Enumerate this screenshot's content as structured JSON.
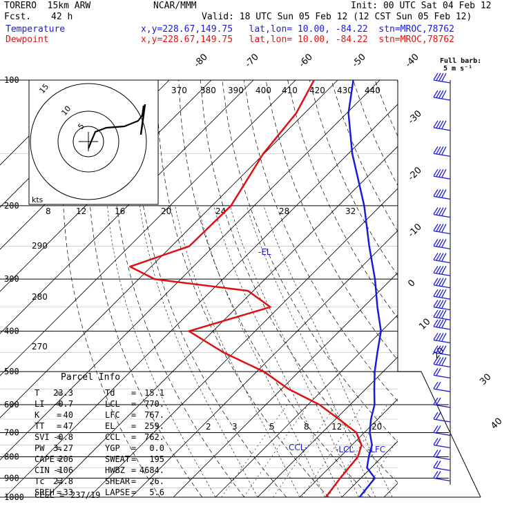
{
  "header": {
    "model": "TORERO  15km ARW",
    "org": "NCAR/MMM",
    "init": "Init: 00 UTC Sat 04 Feb 12",
    "fcst_label": "Fcst.",
    "fcst_value": "42 h",
    "valid": "Valid: 18 UTC Sun 05 Feb 12 (12 CST Sun 05 Feb 12)",
    "temp_label": "Temperature",
    "dew_label": "Dewpoint",
    "location_line": "x,y=228.67,149.75   lat,lon= 10.00, -84.22  stn=MROC,78762",
    "barb_label_1": "Full barb:",
    "barb_label_2": "5 m s⁻¹"
  },
  "parcel_info": {
    "title": "Parcel Info",
    "rows": [
      {
        "l1": "T",
        "v1": "23.3",
        "l2": "Td",
        "v2": "15.1"
      },
      {
        "l1": "LI",
        "v1": "-0.7",
        "l2": "LCL",
        "v2": "770."
      },
      {
        "l1": "K",
        "v1": "40",
        "l2": "LFC",
        "v2": "767."
      },
      {
        "l1": "TT",
        "v1": "47",
        "l2": "EL",
        "v2": "259."
      },
      {
        "l1": "SVI",
        "v1": "-0.8",
        "l2": "CCL",
        "v2": "762."
      },
      {
        "l1": "PW",
        "v1": "3.27",
        "l2": "YGP",
        "v2": "0.0"
      },
      {
        "l1": "CAPE",
        "v1": "206",
        "l2": "SWEAT",
        "v2": "195"
      },
      {
        "l1": "CIN",
        "v1": "-106",
        "l2": "HWBZ",
        "v2": "4684."
      },
      {
        "l1": "Tc",
        "v1": "23.8",
        "l2": "SHEAR",
        "v2": "26."
      },
      {
        "l1": "SREH",
        "v1": "33",
        "l2": "LAPSE",
        "v2": "5.6"
      }
    ],
    "cell_label": "CELL =",
    "cell_value": "237/19"
  },
  "chart_data": {
    "type": "line",
    "title": "",
    "pressure_levels": [
      100,
      200,
      300,
      400,
      500,
      600,
      700,
      800,
      900,
      1000
    ],
    "ylim": [
      1000,
      100
    ],
    "isotherm_labels_top": [
      "-80",
      "-70",
      "-60",
      "-50",
      "-40"
    ],
    "isotherm_labels_right": [
      "-30",
      "-20",
      "-10",
      "0",
      "10",
      "20",
      "30",
      "40"
    ],
    "theta_e_labels": [
      "370",
      "380",
      "390",
      "400",
      "410",
      "420",
      "430",
      "440"
    ],
    "theta_labels_left": [
      "290",
      "280",
      "270"
    ],
    "mixing_ratio_labels": [
      "2",
      "3",
      "5",
      "8",
      "12",
      "20"
    ],
    "hodograph": {
      "unit_label": "kts",
      "ring_labels": [
        "5",
        "10",
        "15"
      ],
      "speed_labels": [
        "8",
        "12",
        "16",
        "20",
        "24",
        "28",
        "32"
      ]
    },
    "markers": {
      "el": "-EL",
      "ccl": "CCL-",
      "lcl": "-LCL",
      "lfc": "-LFC"
    },
    "series": [
      {
        "name": "Temperature",
        "color": "#1a1adc",
        "points": [
          {
            "p": 1000,
            "t": 24.2
          },
          {
            "p": 900,
            "t": 23.3
          },
          {
            "p": 850,
            "t": 19.0
          },
          {
            "p": 800,
            "t": 16.8
          },
          {
            "p": 750,
            "t": 14.8
          },
          {
            "p": 700,
            "t": 11.3
          },
          {
            "p": 650,
            "t": 8.4
          },
          {
            "p": 600,
            "t": 5.8
          },
          {
            "p": 550,
            "t": 2.0
          },
          {
            "p": 500,
            "t": -2.0
          },
          {
            "p": 450,
            "t": -5.9
          },
          {
            "p": 400,
            "t": -10.1
          },
          {
            "p": 350,
            "t": -16.7
          },
          {
            "p": 300,
            "t": -23.9
          },
          {
            "p": 250,
            "t": -33.1
          },
          {
            "p": 200,
            "t": -43.9
          },
          {
            "p": 150,
            "t": -59.1
          },
          {
            "p": 120,
            "t": -69.6
          },
          {
            "p": 100,
            "t": -76.3
          }
        ]
      },
      {
        "name": "Dewpoint",
        "color": "#e01010",
        "points": [
          {
            "p": 1000,
            "t": 16.2
          },
          {
            "p": 900,
            "t": 15.1
          },
          {
            "p": 800,
            "t": 14.2
          },
          {
            "p": 750,
            "t": 12.3
          },
          {
            "p": 700,
            "t": 8.1
          },
          {
            "p": 650,
            "t": 0.8
          },
          {
            "p": 600,
            "t": -7.3
          },
          {
            "p": 550,
            "t": -18.4
          },
          {
            "p": 500,
            "t": -28.3
          },
          {
            "p": 450,
            "t": -42.4
          },
          {
            "p": 400,
            "t": -55.7
          },
          {
            "p": 350,
            "t": -42.1
          },
          {
            "p": 320,
            "t": -51.3
          },
          {
            "p": 300,
            "t": -76.2
          },
          {
            "p": 280,
            "t": -85.0
          },
          {
            "p": 250,
            "t": -75.8
          },
          {
            "p": 200,
            "t": -75.5
          },
          {
            "p": 150,
            "t": -80.2
          },
          {
            "p": 120,
            "t": -82.0
          },
          {
            "p": 100,
            "t": -85.6
          }
        ]
      }
    ],
    "wind_levels_hpa": [
      100,
      110,
      130,
      150,
      170,
      190,
      210,
      230,
      250,
      270,
      290,
      310,
      330,
      350,
      370,
      390,
      420,
      450,
      480,
      510,
      550,
      600,
      650,
      700,
      750,
      800,
      850,
      900
    ],
    "legend_position": "top-left"
  }
}
